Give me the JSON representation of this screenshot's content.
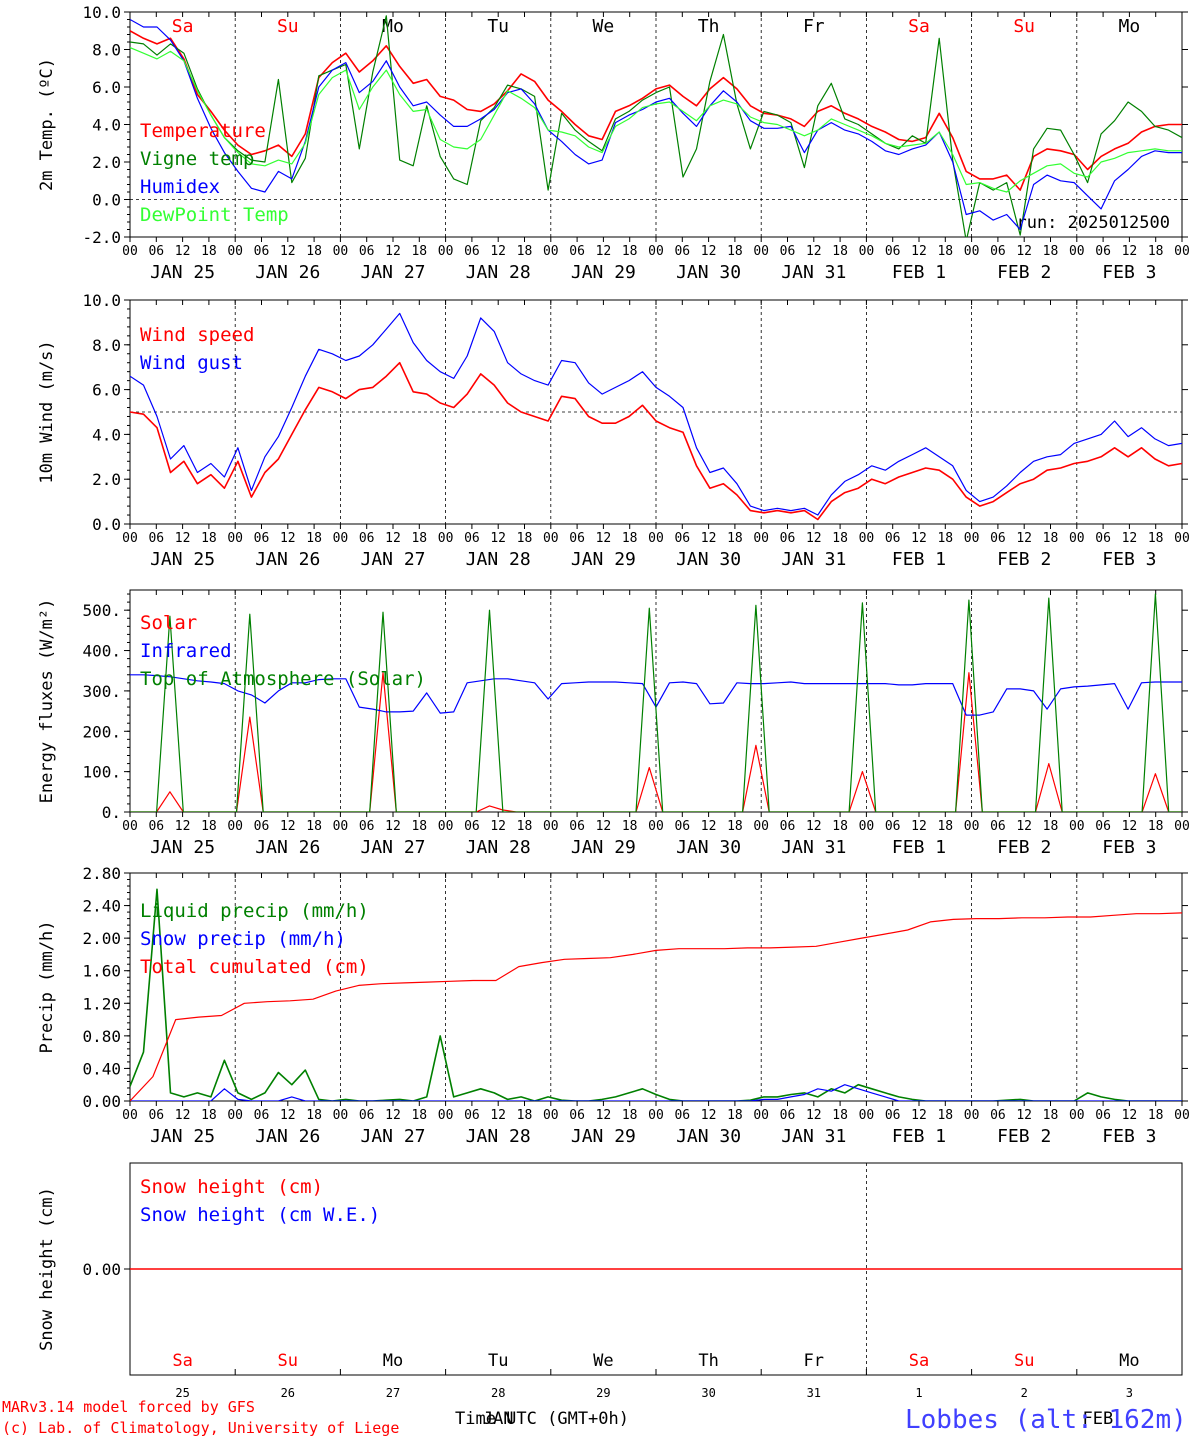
{
  "run_label": "run: 2025012500",
  "footer": {
    "model": "MARv3.14 model forced by GFS",
    "copyright": "(c) Lab. of Climatology, University of Liege",
    "time_label": "Time UTC (GMT+0h)",
    "station": "Lobbes (alt: 162m)"
  },
  "colors": {
    "red": "#ff0000",
    "green": "#008000",
    "blue": "#0000ff",
    "light_green": "#33ff33",
    "weekend": "#ff0000",
    "weekday": "#000000"
  },
  "day_names": [
    "Sa",
    "Su",
    "Mo",
    "Tu",
    "We",
    "Th",
    "Fr",
    "Sa",
    "Su",
    "Mo"
  ],
  "day_weekend": [
    true,
    true,
    false,
    false,
    false,
    false,
    false,
    true,
    true,
    false
  ],
  "date_labels": [
    "JAN 25",
    "JAN 26",
    "JAN 27",
    "JAN 28",
    "JAN 29",
    "JAN 30",
    "JAN 31",
    "FEB  1",
    "FEB  2",
    "FEB  3"
  ],
  "hour_ticks": [
    "00",
    "06",
    "12",
    "18"
  ],
  "bottom_day_numbers": [
    "25",
    "26",
    "27",
    "28",
    "29",
    "30",
    "31",
    "1",
    "2",
    "3"
  ],
  "bottom_month_labels": [
    "JAN",
    "FEB"
  ],
  "chart_data": [
    {
      "type": "line",
      "ylabel": "2m Temp. (ºC)",
      "ylim": [
        -2,
        10
      ],
      "yticks": [
        "-2.0",
        "0.0",
        "2.0",
        "4.0",
        "6.0",
        "8.0",
        "10.0"
      ],
      "ref_line": 0,
      "series": [
        {
          "name": "Temperature",
          "color": "#ff0000",
          "values": [
            9.0,
            8.6,
            8.3,
            8.6,
            7.5,
            5.6,
            4.7,
            3.7,
            2.9,
            2.4,
            2.6,
            2.9,
            2.3,
            3.5,
            6.5,
            7.3,
            7.8,
            6.8,
            7.4,
            8.2,
            7.1,
            6.2,
            6.4,
            5.5,
            5.3,
            4.8,
            4.7,
            5.1,
            5.8,
            6.7,
            6.3,
            5.3,
            4.7,
            4.0,
            3.4,
            3.2,
            4.7,
            5.0,
            5.4,
            5.9,
            6.1,
            5.5,
            5.0,
            5.9,
            6.5,
            5.9,
            5.0,
            4.6,
            4.5,
            4.3,
            3.9,
            4.7,
            5.0,
            4.6,
            4.3,
            3.9,
            3.6,
            3.2,
            3.1,
            3.3,
            4.6,
            3.3,
            1.5,
            1.1,
            1.1,
            1.3,
            0.5,
            2.3,
            2.7,
            2.6,
            2.4,
            1.6,
            2.3,
            2.7,
            3.0,
            3.6,
            3.9,
            4.0,
            4.0
          ]
        },
        {
          "name": "Vigne temp",
          "color": "#008000",
          "values": [
            8.4,
            8.3,
            7.7,
            8.3,
            7.8,
            5.9,
            4.5,
            3.3,
            2.6,
            2.1,
            2.0,
            6.4,
            0.9,
            2.2,
            6.6,
            6.9,
            7.2,
            2.7,
            6.8,
            9.8,
            2.1,
            1.8,
            5.0,
            2.3,
            1.1,
            0.8,
            4.2,
            4.9,
            6.1,
            5.9,
            5.5,
            0.5,
            4.6,
            3.7,
            3.1,
            2.6,
            4.3,
            4.7,
            5.3,
            5.7,
            6.0,
            1.2,
            2.7,
            6.3,
            8.8,
            5.1,
            2.7,
            4.7,
            4.5,
            4.1,
            1.7,
            5.0,
            6.2,
            4.3,
            4.0,
            3.5,
            3.0,
            2.7,
            3.4,
            3.0,
            8.6,
            2.1,
            -2.2,
            0.9,
            0.5,
            0.9,
            -1.9,
            2.7,
            3.8,
            3.7,
            2.4,
            0.9,
            3.5,
            4.2,
            5.2,
            4.7,
            3.9,
            3.7,
            3.3
          ]
        },
        {
          "name": "Humidex",
          "color": "#0000ff",
          "values": [
            9.6,
            9.2,
            9.2,
            8.5,
            7.4,
            5.4,
            3.8,
            2.5,
            1.5,
            0.6,
            0.4,
            1.5,
            1.1,
            3.1,
            6.0,
            6.9,
            7.3,
            5.7,
            6.3,
            7.4,
            6.0,
            5.0,
            5.2,
            4.5,
            3.9,
            3.9,
            4.3,
            4.8,
            5.7,
            5.9,
            5.1,
            3.7,
            3.1,
            2.4,
            1.9,
            2.1,
            4.1,
            4.5,
            4.8,
            5.2,
            5.4,
            4.6,
            3.9,
            5.0,
            5.8,
            5.2,
            4.2,
            3.8,
            3.8,
            3.9,
            2.5,
            3.7,
            4.1,
            3.7,
            3.5,
            3.1,
            2.6,
            2.4,
            2.7,
            2.9,
            3.6,
            2.0,
            -0.8,
            -0.6,
            -1.1,
            -0.8,
            -1.6,
            0.8,
            1.3,
            1.0,
            0.9,
            0.2,
            -0.5,
            1.0,
            1.6,
            2.3,
            2.6,
            2.5,
            2.5
          ]
        },
        {
          "name": "DewPoint Temp",
          "color": "#33ff33",
          "values": [
            8.1,
            7.8,
            7.5,
            7.9,
            7.4,
            5.8,
            4.5,
            3.3,
            2.5,
            1.9,
            1.8,
            2.1,
            1.9,
            3.0,
            5.6,
            6.5,
            6.9,
            4.8,
            6.0,
            6.9,
            5.6,
            4.7,
            4.8,
            3.2,
            2.8,
            2.7,
            3.2,
            4.5,
            5.8,
            5.4,
            4.9,
            3.7,
            3.6,
            3.4,
            2.8,
            2.5,
            3.9,
            4.3,
            4.9,
            5.1,
            5.2,
            4.7,
            4.2,
            5.0,
            5.3,
            5.1,
            4.4,
            4.1,
            4.0,
            3.7,
            3.4,
            3.7,
            4.3,
            4.0,
            3.7,
            3.4,
            3.0,
            2.8,
            2.9,
            3.0,
            3.6,
            2.4,
            0.8,
            0.9,
            0.6,
            0.4,
            1.0,
            1.4,
            1.8,
            1.9,
            1.4,
            1.2,
            2.0,
            2.2,
            2.5,
            2.6,
            2.7,
            2.6,
            2.6
          ]
        }
      ]
    },
    {
      "type": "line",
      "ylabel": "10m Wind (m/s)",
      "ylim": [
        0,
        10
      ],
      "yticks": [
        "0.0",
        "2.0",
        "4.0",
        "6.0",
        "8.0",
        "10.0"
      ],
      "ref_line": 5,
      "series": [
        {
          "name": "Wind speed",
          "color": "#ff0000",
          "values": [
            5.0,
            4.9,
            4.3,
            2.3,
            2.8,
            1.8,
            2.2,
            1.6,
            2.8,
            1.2,
            2.3,
            2.9,
            4.0,
            5.1,
            6.1,
            5.9,
            5.6,
            6.0,
            6.1,
            6.6,
            7.2,
            5.9,
            5.8,
            5.4,
            5.2,
            5.8,
            6.7,
            6.2,
            5.4,
            5.0,
            4.8,
            4.6,
            5.7,
            5.6,
            4.8,
            4.5,
            4.5,
            4.8,
            5.3,
            4.6,
            4.3,
            4.1,
            2.6,
            1.6,
            1.8,
            1.3,
            0.6,
            0.5,
            0.6,
            0.5,
            0.6,
            0.2,
            1.0,
            1.4,
            1.6,
            2.0,
            1.8,
            2.1,
            2.3,
            2.5,
            2.4,
            2.0,
            1.2,
            0.8,
            1.0,
            1.4,
            1.8,
            2.0,
            2.4,
            2.5,
            2.7,
            2.8,
            3.0,
            3.4,
            3.0,
            3.4,
            2.9,
            2.6,
            2.7
          ]
        },
        {
          "name": "Wind gust",
          "color": "#0000ff",
          "values": [
            6.6,
            6.2,
            4.8,
            2.9,
            3.5,
            2.3,
            2.7,
            2.1,
            3.4,
            1.5,
            3.0,
            3.9,
            5.2,
            6.6,
            7.8,
            7.6,
            7.3,
            7.5,
            8.0,
            8.7,
            9.4,
            8.1,
            7.3,
            6.8,
            6.5,
            7.5,
            9.2,
            8.6,
            7.2,
            6.7,
            6.4,
            6.2,
            7.3,
            7.2,
            6.3,
            5.8,
            6.1,
            6.4,
            6.8,
            6.1,
            5.7,
            5.2,
            3.4,
            2.3,
            2.5,
            1.8,
            0.8,
            0.6,
            0.7,
            0.6,
            0.7,
            0.4,
            1.3,
            1.9,
            2.2,
            2.6,
            2.4,
            2.8,
            3.1,
            3.4,
            3.0,
            2.6,
            1.5,
            1.0,
            1.2,
            1.7,
            2.3,
            2.8,
            3.0,
            3.1,
            3.6,
            3.8,
            4.0,
            4.6,
            3.9,
            4.3,
            3.8,
            3.5,
            3.6
          ]
        }
      ]
    },
    {
      "type": "line",
      "ylabel": "Energy fluxes (W/m²)",
      "ylim": [
        0,
        550
      ],
      "yticks": [
        "0.",
        "100.",
        "200.",
        "300.",
        "400.",
        "500."
      ],
      "series": [
        {
          "name": "Solar",
          "color": "#ff0000",
          "values": [
            0,
            0,
            0,
            50,
            0,
            0,
            0,
            0,
            0,
            235,
            0,
            0,
            0,
            0,
            0,
            0,
            0,
            0,
            0,
            345,
            0,
            0,
            0,
            0,
            0,
            0,
            0,
            15,
            5,
            0,
            0,
            0,
            0,
            0,
            0,
            0,
            0,
            0,
            0,
            110,
            0,
            0,
            0,
            0,
            0,
            0,
            0,
            165,
            0,
            0,
            0,
            0,
            0,
            0,
            0,
            100,
            0,
            0,
            0,
            0,
            0,
            0,
            0,
            345,
            0,
            0,
            0,
            0,
            0,
            120,
            0,
            0,
            0,
            0,
            0,
            0,
            0,
            95,
            0,
            0
          ]
        },
        {
          "name": "Infrared",
          "color": "#0000ff",
          "values": [
            340,
            340,
            338,
            335,
            330,
            325,
            322,
            318,
            300,
            290,
            270,
            300,
            320,
            320,
            328,
            330,
            330,
            260,
            255,
            248,
            248,
            250,
            295,
            245,
            248,
            320,
            325,
            330,
            330,
            325,
            320,
            280,
            318,
            320,
            322,
            322,
            322,
            320,
            318,
            260,
            320,
            322,
            318,
            268,
            270,
            320,
            318,
            318,
            320,
            322,
            318,
            318,
            318,
            318,
            318,
            318,
            318,
            315,
            315,
            318,
            318,
            318,
            240,
            240,
            248,
            305,
            305,
            300,
            255,
            305,
            310,
            312,
            315,
            318,
            255,
            320,
            322,
            322,
            322
          ]
        },
        {
          "name": "Top of Atmosphere (Solar)",
          "color": "#008000",
          "values": [
            0,
            0,
            0,
            485,
            0,
            0,
            0,
            0,
            0,
            490,
            0,
            0,
            0,
            0,
            0,
            0,
            0,
            0,
            0,
            495,
            0,
            0,
            0,
            0,
            0,
            0,
            0,
            500,
            0,
            0,
            0,
            0,
            0,
            0,
            0,
            0,
            0,
            0,
            0,
            505,
            0,
            0,
            0,
            0,
            0,
            0,
            0,
            512,
            0,
            0,
            0,
            0,
            0,
            0,
            0,
            518,
            0,
            0,
            0,
            0,
            0,
            0,
            0,
            525,
            0,
            0,
            0,
            0,
            0,
            530,
            0,
            0,
            0,
            0,
            0,
            0,
            0,
            540,
            0,
            0
          ]
        }
      ]
    },
    {
      "type": "line",
      "ylabel": "Precip (mm/h)",
      "ylim": [
        0,
        2.8
      ],
      "yticks": [
        "0.00",
        "0.40",
        "0.80",
        "1.20",
        "1.60",
        "2.00",
        "2.40",
        "2.80"
      ],
      "series": [
        {
          "name": "Liquid precip (mm/h)",
          "color": "#008000",
          "values": [
            0.18,
            0.6,
            2.6,
            0.1,
            0.05,
            0.1,
            0.05,
            0.5,
            0.1,
            0.02,
            0.1,
            0.35,
            0.2,
            0.38,
            0.02,
            0.0,
            0.02,
            0.0,
            0.0,
            0.01,
            0.02,
            0.0,
            0.05,
            0.8,
            0.05,
            0.1,
            0.15,
            0.1,
            0.02,
            0.05,
            0.0,
            0.05,
            0.01,
            0.0,
            0.0,
            0.02,
            0.05,
            0.1,
            0.15,
            0.08,
            0.02,
            0.0,
            0.0,
            0.0,
            0.0,
            0.0,
            0.01,
            0.05,
            0.05,
            0.08,
            0.1,
            0.05,
            0.15,
            0.1,
            0.2,
            0.15,
            0.1,
            0.05,
            0.02,
            0.0,
            0.0,
            0.0,
            0.0,
            0.0,
            0.0,
            0.01,
            0.02,
            0.0,
            0.0,
            0.0,
            0.0,
            0.1,
            0.05,
            0.02,
            0.0,
            0.0,
            0.0,
            0.0,
            0.0
          ]
        },
        {
          "name": "Snow precip (mm/h)",
          "color": "#0000ff",
          "values": [
            0,
            0,
            0,
            0,
            0,
            0,
            0,
            0.15,
            0.02,
            0,
            0,
            0,
            0.05,
            0,
            0,
            0,
            0,
            0,
            0,
            0,
            0,
            0,
            0,
            0,
            0,
            0,
            0,
            0,
            0,
            0,
            0,
            0,
            0,
            0,
            0,
            0,
            0,
            0,
            0,
            0,
            0,
            0,
            0,
            0,
            0,
            0,
            0,
            0.02,
            0.02,
            0.05,
            0.08,
            0.15,
            0.12,
            0.2,
            0.15,
            0.1,
            0.05,
            0,
            0,
            0,
            0,
            0,
            0,
            0,
            0,
            0,
            0,
            0,
            0,
            0,
            0,
            0,
            0,
            0,
            0,
            0,
            0,
            0,
            0
          ]
        },
        {
          "name": "Total cumulated (cm)",
          "color": "#ff0000",
          "values": [
            0.0,
            0.3,
            1.0,
            1.03,
            1.05,
            1.2,
            1.22,
            1.23,
            1.25,
            1.35,
            1.42,
            1.44,
            1.45,
            1.46,
            1.47,
            1.48,
            1.48,
            1.65,
            1.7,
            1.74,
            1.75,
            1.76,
            1.8,
            1.85,
            1.87,
            1.87,
            1.87,
            1.88,
            1.88,
            1.89,
            1.9,
            1.95,
            2.0,
            2.05,
            2.1,
            2.2,
            2.23,
            2.24,
            2.24,
            2.25,
            2.25,
            2.26,
            2.26,
            2.28,
            2.3,
            2.3,
            2.31
          ]
        }
      ]
    },
    {
      "type": "line",
      "ylabel": "Snow height (cm)",
      "yticks": [
        "0.00"
      ],
      "series": [
        {
          "name": "Snow height (cm)",
          "color": "#ff0000",
          "values": [
            0,
            0
          ]
        },
        {
          "name": "Snow height (cm W.E.)",
          "color": "#0000ff",
          "values": []
        }
      ]
    }
  ]
}
